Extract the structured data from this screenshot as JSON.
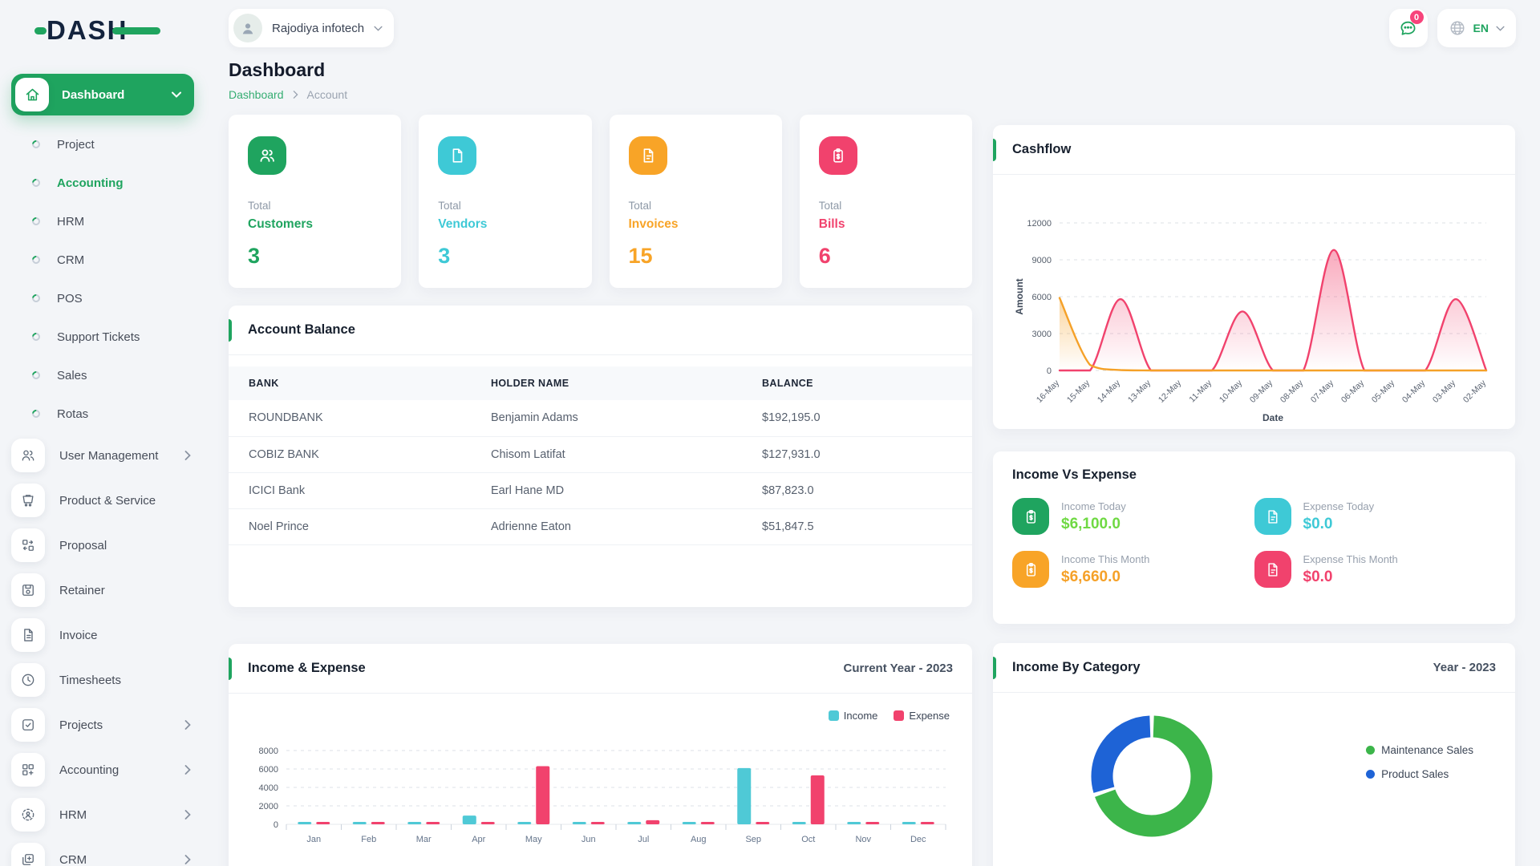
{
  "brand": {
    "name": "DASH"
  },
  "header": {
    "user_name": "Rajodiya infotech",
    "notification_count": "0",
    "language": "EN"
  },
  "colors": {
    "primary_green": "#1fa45f",
    "lime": "#6fd943",
    "cyan": "#3ec9d6",
    "orange": "#f8a427",
    "pink": "#f1426d",
    "badge": "#f7447b",
    "donut_green": "#3cb54a",
    "donut_blue": "#1e63d6"
  },
  "sidebar": {
    "active_group": {
      "label": "Dashboard"
    },
    "group_items": [
      {
        "label": "Project",
        "active": false
      },
      {
        "label": "Accounting",
        "active": true
      },
      {
        "label": "HRM",
        "active": false
      },
      {
        "label": "CRM",
        "active": false
      },
      {
        "label": "POS",
        "active": false
      },
      {
        "label": "Support Tickets",
        "active": false
      },
      {
        "label": "Sales",
        "active": false
      },
      {
        "label": "Rotas",
        "active": false
      }
    ],
    "menu_items": [
      {
        "label": "User Management",
        "icon": "users-icon",
        "has_submenu": true
      },
      {
        "label": "Product & Service",
        "icon": "cart-icon",
        "has_submenu": false
      },
      {
        "label": "Proposal",
        "icon": "proposal-icon",
        "has_submenu": false
      },
      {
        "label": "Retainer",
        "icon": "save-icon",
        "has_submenu": false
      },
      {
        "label": "Invoice",
        "icon": "file-icon",
        "has_submenu": false
      },
      {
        "label": "Timesheets",
        "icon": "clock-icon",
        "has_submenu": false
      },
      {
        "label": "Projects",
        "icon": "checkbox-icon",
        "has_submenu": true
      },
      {
        "label": "Accounting",
        "icon": "grid-plus-icon",
        "has_submenu": true
      },
      {
        "label": "HRM",
        "icon": "user-focus-icon",
        "has_submenu": true
      },
      {
        "label": "CRM",
        "icon": "window-plus-icon",
        "has_submenu": true
      }
    ]
  },
  "page": {
    "title": "Dashboard",
    "breadcrumb": {
      "items": [
        "Dashboard",
        "Account"
      ]
    }
  },
  "stats": [
    {
      "label": "Total",
      "name": "Customers",
      "value": "3",
      "color": "#1fa45f"
    },
    {
      "label": "Total",
      "name": "Vendors",
      "value": "3",
      "color": "#3ec9d6"
    },
    {
      "label": "Total",
      "name": "Invoices",
      "value": "15",
      "color": "#f8a427"
    },
    {
      "label": "Total",
      "name": "Bills",
      "value": "6",
      "color": "#f1426d"
    }
  ],
  "account_balance": {
    "title": "Account Balance",
    "columns": [
      "BANK",
      "HOLDER NAME",
      "BALANCE"
    ],
    "rows": [
      [
        "ROUNDBANK",
        "Benjamin Adams",
        "$192,195.0"
      ],
      [
        "COBIZ BANK",
        "Chisom Latifat",
        "$127,931.0"
      ],
      [
        "ICICI Bank",
        "Earl Hane MD",
        "$87,823.0"
      ],
      [
        "Noel Prince",
        "Adrienne Eaton",
        "$51,847.5"
      ]
    ]
  },
  "income_vs_expense": {
    "title": "Income Vs Expense",
    "items": [
      {
        "label": "Income Today",
        "value": "$6,100.0",
        "value_color": "#6fd943",
        "icon": "clipboard-dollar-icon",
        "icon_bg": "#1fa45f"
      },
      {
        "label": "Expense Today",
        "value": "$0.0",
        "value_color": "#3ec9d6",
        "icon": "expense-file-icon",
        "icon_bg": "#3ec9d6"
      },
      {
        "label": "Income This Month",
        "value": "$6,660.0",
        "value_color": "#f5a128",
        "icon": "clipboard-dollar-icon",
        "icon_bg": "#f8a427"
      },
      {
        "label": "Expense This Month",
        "value": "$0.0",
        "value_color": "#f1426d",
        "icon": "expense-file-icon",
        "icon_bg": "#f1426d"
      }
    ]
  },
  "chart_data": [
    {
      "type": "line",
      "title": "Cashflow",
      "x": [
        "16-May",
        "15-May",
        "14-May",
        "13-May",
        "12-May",
        "11-May",
        "10-May",
        "09-May",
        "08-May",
        "07-May",
        "06-May",
        "05-May",
        "04-May",
        "03-May",
        "02-May"
      ],
      "xlabel": "Date",
      "ylabel": "Amount",
      "ylim": [
        0,
        12000
      ],
      "yticks": [
        0,
        3000,
        6000,
        9000,
        12000
      ],
      "grid": "horizontal-dashed",
      "series": [
        {
          "color": "#f5a128",
          "values": [
            5900,
            450,
            30,
            0,
            0,
            0,
            0,
            0,
            0,
            0,
            0,
            0,
            0,
            0,
            0
          ]
        },
        {
          "color": "#f1426d",
          "values": [
            0,
            0,
            5800,
            0,
            0,
            0,
            4800,
            0,
            0,
            9800,
            0,
            0,
            0,
            5800,
            0
          ]
        }
      ]
    },
    {
      "type": "bar",
      "title": "Income & Expense",
      "subtitle": "Current Year - 2023",
      "categories": [
        "Jan",
        "Feb",
        "Mar",
        "Apr",
        "May",
        "Jun",
        "Jul",
        "Aug",
        "Sep",
        "Oct",
        "Nov",
        "Dec"
      ],
      "series": [
        {
          "name": "Income",
          "color": "#4fc9d6",
          "values": [
            250,
            120,
            120,
            950,
            120,
            120,
            220,
            120,
            6100,
            120,
            120,
            120
          ]
        },
        {
          "name": "Expense",
          "color": "#f1426d",
          "values": [
            150,
            120,
            120,
            120,
            6300,
            140,
            450,
            120,
            120,
            5300,
            120,
            120
          ]
        }
      ],
      "ylim": [
        0,
        8000
      ],
      "yticks": [
        0,
        2000,
        4000,
        6000,
        8000
      ],
      "grid": "horizontal-dashed",
      "legend_position": "top-right"
    },
    {
      "type": "pie",
      "donut": true,
      "title": "Income By Category",
      "subtitle": "Year - 2023",
      "labels": [
        "Maintenance Sales",
        "Product Sales"
      ],
      "values_percent": [
        70,
        30
      ],
      "colors": [
        "#3cb54a",
        "#1e63d6"
      ],
      "legend_position": "right"
    }
  ]
}
